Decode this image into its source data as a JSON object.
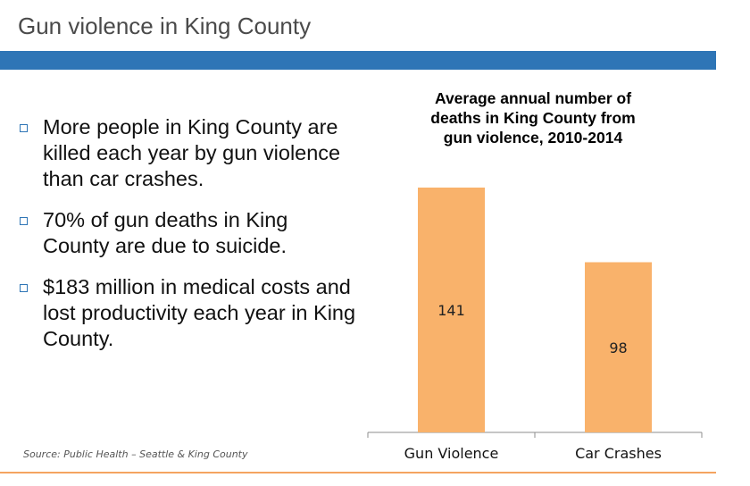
{
  "slide": {
    "title": "Gun violence in King County",
    "band_color": "#2e75b6",
    "accent_rule_color": "#f4a460"
  },
  "bullets": [
    {
      "text": "More people in King County are killed each year by gun violence than car crashes.",
      "marker_icon": "square-bullet-icon"
    },
    {
      "text": "70% of gun deaths in King County are due to suicide.",
      "marker_icon": "square-bullet-icon"
    },
    {
      "text": "$183 million in medical costs and lost productivity each year in King County.",
      "marker_icon": "square-bullet-icon"
    }
  ],
  "source": "Source: Public Health – Seattle & King County",
  "chart_data": {
    "type": "bar",
    "title_lines": [
      "Average annual number of",
      "deaths in King County from",
      "gun violence, 2010-2014"
    ],
    "categories": [
      "Gun Violence",
      "Car Crashes"
    ],
    "values": [
      141,
      98
    ],
    "ylim": [
      0,
      160
    ],
    "bar_color": "#f9b26b",
    "grid": false,
    "legend": "none",
    "xlabel": "",
    "ylabel": ""
  }
}
